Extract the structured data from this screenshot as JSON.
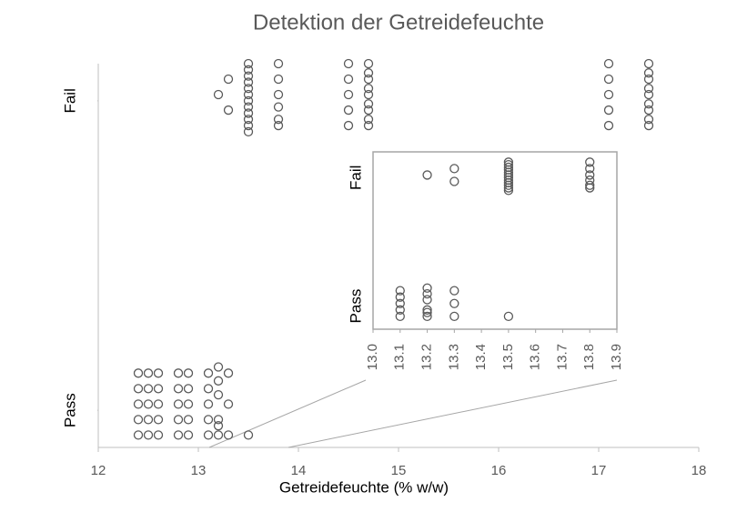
{
  "chart_data": {
    "type": "scatter",
    "title": "Detektion der Getreidefeuchte",
    "x_label": "Getreidefeuchte (% w/w)",
    "color": "#595959",
    "xlim": [
      12,
      18
    ],
    "xticks": [
      12,
      13,
      14,
      15,
      16,
      17,
      18
    ],
    "ylim": [
      -0.12,
      1.12
    ],
    "yticks": [
      {
        "value": 0,
        "label": "Pass"
      },
      {
        "value": 1,
        "label": "Fail"
      }
    ],
    "x": [
      13.2,
      13.3,
      13.3,
      13.5,
      13.5,
      13.5,
      13.5,
      13.5,
      13.5,
      13.5,
      13.5,
      13.5,
      13.5,
      13.5,
      13.5,
      13.8,
      13.8,
      13.8,
      13.8,
      13.8,
      13.8,
      14.5,
      14.5,
      14.5,
      14.5,
      14.5,
      14.7,
      14.7,
      14.7,
      14.7,
      14.7,
      14.7,
      14.7,
      14.7,
      14.7,
      17.1,
      17.1,
      17.1,
      17.1,
      17.1,
      17.5,
      17.5,
      17.5,
      17.5,
      17.5,
      17.5,
      17.5,
      17.5,
      17.5,
      12.4,
      12.4,
      12.4,
      12.4,
      12.4,
      12.5,
      12.5,
      12.5,
      12.5,
      12.5,
      12.6,
      12.6,
      12.6,
      12.6,
      12.6,
      12.8,
      12.8,
      12.8,
      12.8,
      12.8,
      12.9,
      12.9,
      12.9,
      12.9,
      12.9,
      13.1,
      13.1,
      13.1,
      13.1,
      13.1,
      13.2,
      13.2,
      13.2,
      13.2,
      13.2,
      13.2,
      13.3,
      13.3,
      13.3,
      13.5
    ],
    "y": [
      1.02,
      1.07,
      0.97,
      1.12,
      1.1,
      1.08,
      1.06,
      1.04,
      1.02,
      1.0,
      0.98,
      0.96,
      0.94,
      0.92,
      0.9,
      1.12,
      1.07,
      1.02,
      0.98,
      0.94,
      0.92,
      1.12,
      1.07,
      1.02,
      0.97,
      0.92,
      1.12,
      1.09,
      1.07,
      1.04,
      1.02,
      0.99,
      0.97,
      0.94,
      0.92,
      1.12,
      1.07,
      1.02,
      0.97,
      0.92,
      1.12,
      1.09,
      1.07,
      1.04,
      1.02,
      0.99,
      0.97,
      0.94,
      0.92,
      0.12,
      0.07,
      0.02,
      -0.03,
      -0.08,
      0.12,
      0.07,
      0.02,
      -0.03,
      -0.08,
      0.12,
      0.07,
      0.02,
      -0.03,
      -0.08,
      0.12,
      0.07,
      0.02,
      -0.03,
      -0.08,
      0.12,
      0.07,
      0.02,
      -0.03,
      -0.08,
      0.12,
      0.07,
      0.02,
      -0.03,
      -0.08,
      0.14,
      0.095,
      0.05,
      -0.03,
      -0.05,
      -0.08,
      0.12,
      0.02,
      -0.08,
      -0.08
    ],
    "inset": {
      "xlim": [
        13.0,
        13.9
      ],
      "ylim": [
        -0.18,
        1.2
      ],
      "xticks": [
        {
          "value": 13.0,
          "label": "13.0"
        },
        13.1,
        13.2,
        13.3,
        13.4,
        13.5,
        13.6,
        13.7,
        13.8,
        13.9
      ]
    }
  }
}
